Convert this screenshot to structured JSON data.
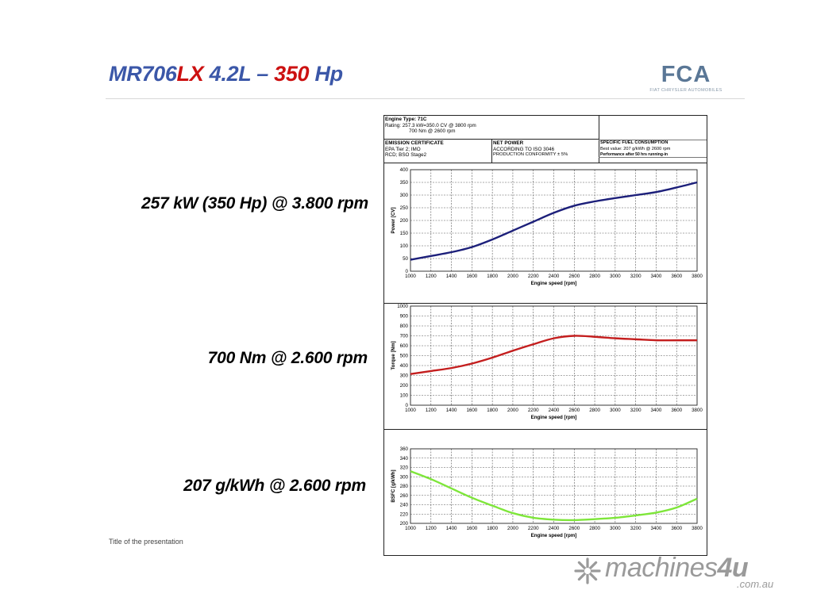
{
  "title": {
    "model": "MR706",
    "suffix": "LX",
    "displacement": " 4.2L – ",
    "hp": "350",
    "unit": " Hp"
  },
  "logo": {
    "mark": "FCA",
    "sub": "FIAT CHRYSLER AUTOMOBILES"
  },
  "stats": {
    "power": "257 kW (350 Hp) @ 3.800 rpm",
    "torque": "700 Nm @ 2.600 rpm",
    "bsfc": "207 g/kWh @ 2.600 rpm"
  },
  "footer": "Title of the presentation",
  "watermark": {
    "name": "machines",
    "four": "4u",
    "domain": ".com.au"
  },
  "info": {
    "engine_type": "Engine Type: 71C",
    "rating_1": "Rating:  257.3 kW=350.0 CV @ 3800 rpm",
    "rating_2": "700 Nm @ 2600 rpm",
    "emission_header": "EMISSION CERTIFICATE",
    "emission_1": "EPA Tier 2; IMO",
    "emission_2": "RCD; BSO Stage2",
    "net_header": "NET POWER",
    "net_1": "ACCORDING TO ISO 3046",
    "net_2": "PRODUCTION CONFORMITY ± 5%",
    "sfc_header": "SPECIFIC FUEL CONSUMPTION",
    "sfc_1": "Best value: 207 g/kWh @ 2600 rpm",
    "sfc_2": "Performance after 50 hrs running-in"
  },
  "colors": {
    "power": "#1c1f7a",
    "torque": "#c41e1e",
    "bsfc": "#7ee63a",
    "title_blue": "#3b57a8",
    "title_red": "#cc1111"
  },
  "chart_data": [
    {
      "type": "line",
      "xlabel": "Engine speed [rpm]",
      "ylabel": "Power [CV]",
      "x": [
        1000,
        1200,
        1400,
        1600,
        1800,
        2000,
        2200,
        2400,
        2600,
        2800,
        3000,
        3200,
        3400,
        3600,
        3800
      ],
      "series": [
        {
          "values": [
            45,
            60,
            75,
            95,
            125,
            160,
            195,
            230,
            258,
            275,
            288,
            300,
            312,
            330,
            350
          ]
        }
      ],
      "xlim": [
        1000,
        3800
      ],
      "ylim": [
        0,
        400
      ],
      "yticks": [
        0,
        50,
        100,
        150,
        200,
        250,
        300,
        350,
        400
      ],
      "xticks": [
        1000,
        1200,
        1400,
        1600,
        1800,
        2000,
        2200,
        2400,
        2600,
        2800,
        3000,
        3200,
        3400,
        3600,
        3800
      ],
      "grid": true
    },
    {
      "type": "line",
      "xlabel": "Engine speed [rpm]",
      "ylabel": "Torque [Nm]",
      "x": [
        1000,
        1200,
        1400,
        1600,
        1800,
        2000,
        2200,
        2400,
        2600,
        2800,
        3000,
        3200,
        3400,
        3600,
        3800
      ],
      "series": [
        {
          "values": [
            315,
            345,
            375,
            420,
            480,
            550,
            615,
            675,
            700,
            690,
            675,
            665,
            655,
            655,
            655
          ]
        }
      ],
      "xlim": [
        1000,
        3800
      ],
      "ylim": [
        0,
        1000
      ],
      "yticks": [
        0,
        100,
        200,
        300,
        400,
        500,
        600,
        700,
        800,
        900,
        1000
      ],
      "xticks": [
        1000,
        1200,
        1400,
        1600,
        1800,
        2000,
        2200,
        2400,
        2600,
        2800,
        3000,
        3200,
        3400,
        3600,
        3800
      ],
      "grid": true
    },
    {
      "type": "line",
      "xlabel": "Engine speed [rpm]",
      "ylabel": "BSFC [g/kWh]",
      "x": [
        1000,
        1200,
        1400,
        1600,
        1800,
        2000,
        2200,
        2400,
        2600,
        2800,
        3000,
        3200,
        3400,
        3600,
        3800
      ],
      "series": [
        {
          "values": [
            312,
            295,
            275,
            255,
            238,
            222,
            212,
            208,
            207,
            209,
            212,
            217,
            223,
            234,
            253
          ]
        }
      ],
      "xlim": [
        1000,
        3800
      ],
      "ylim": [
        200,
        360
      ],
      "yticks": [
        200,
        220,
        240,
        260,
        280,
        300,
        320,
        340,
        360
      ],
      "xticks": [
        1000,
        1200,
        1400,
        1600,
        1800,
        2000,
        2200,
        2400,
        2600,
        2800,
        3000,
        3200,
        3400,
        3600,
        3800
      ],
      "grid": true
    }
  ]
}
